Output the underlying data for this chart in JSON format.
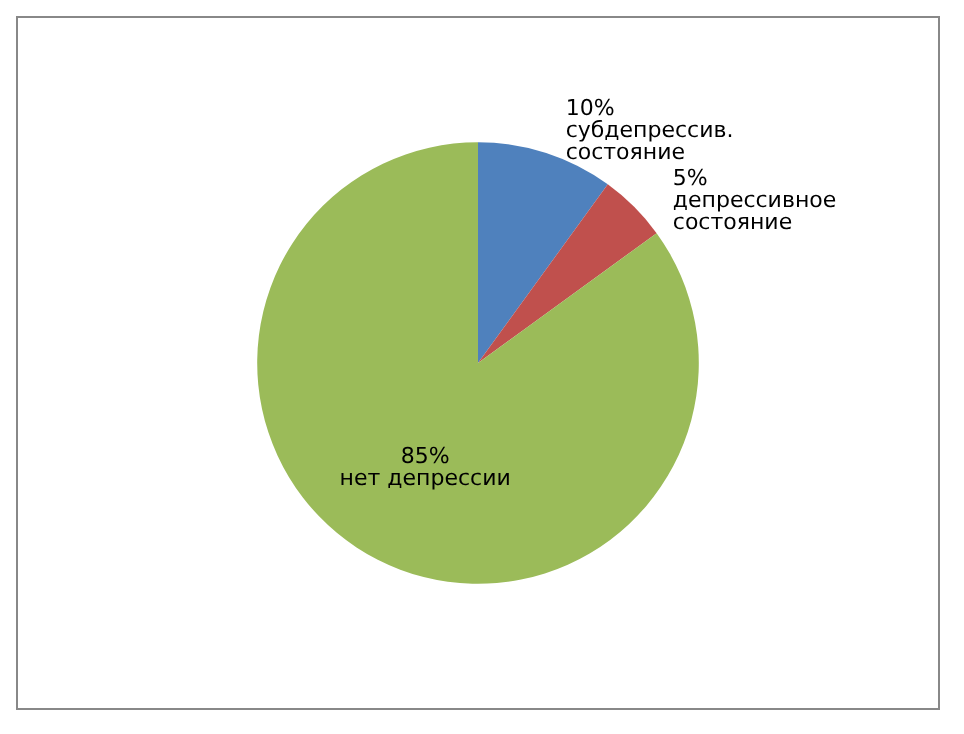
{
  "chart_data": {
    "type": "pie",
    "categories": [
      "субдепрессив. состояние",
      "депрессивное состояние",
      "нет депрессии"
    ],
    "values": [
      10,
      5,
      85
    ],
    "value_labels": [
      "10%",
      "5%",
      "85%"
    ],
    "colors": [
      "#4f81bd",
      "#c0504d",
      "#9bbb59"
    ],
    "legend": false
  }
}
